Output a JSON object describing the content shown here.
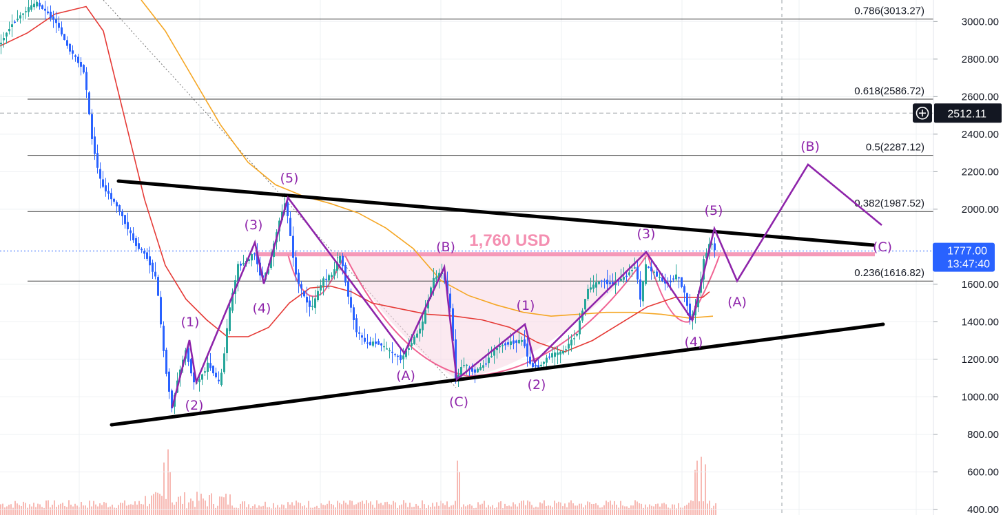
{
  "chart_data": {
    "type": "candlestick",
    "y_axis": {
      "ticks": [
        "3000.00",
        "2800.00",
        "2600.00",
        "2400.00",
        "2200.00",
        "2000.00",
        "1600.00",
        "1400.00",
        "1200.00",
        "1000.00",
        "800.00",
        "600.00",
        "400.00"
      ],
      "tick_values": [
        3000,
        2800,
        2600,
        2400,
        2200,
        2000,
        1600,
        1400,
        1200,
        1000,
        800,
        600,
        400
      ],
      "range": [
        370,
        3115
      ]
    },
    "current_price": {
      "value": "1777.00",
      "countdown": "13:47:40",
      "price": 1777,
      "color": "#2962ff"
    },
    "crosshair": {
      "value": "2512.11",
      "price": 2512.11,
      "icon": "crosshair-plus-icon"
    },
    "fibonacci_levels": [
      {
        "label": "0.786(3013.27)",
        "price": 3013.27
      },
      {
        "label": "0.618(2586.72)",
        "price": 2586.72
      },
      {
        "label": "0.5(2287.12)",
        "price": 2287.12
      },
      {
        "label": "0.382(1987.52)",
        "price": 1987.52
      },
      {
        "label": "0.236(1616.82)",
        "price": 1616.82
      }
    ],
    "resistance_annotation": {
      "text": "1,760 USD",
      "price": 1760,
      "color": "#f48fb1"
    },
    "wave_labels": [
      "(1)",
      "(2)",
      "(3)",
      "(4)",
      "(5)",
      "(A)",
      "(B)",
      "(C)",
      "(1)",
      "(2)",
      "(3)",
      "(4)",
      "(5)",
      "(A)",
      "(B)",
      "(C)"
    ],
    "colors": {
      "bull_candle": "#26a69a",
      "bear_candle": "#2962ff",
      "ma_red": "#e53935",
      "ma_orange": "#f5a623",
      "wave_line": "#8e24aa",
      "trendline": "#000000",
      "cup_fill": "#f8d7e3",
      "volume_bull": "#f4a19a",
      "volume_bear": "#f4a19a"
    }
  }
}
